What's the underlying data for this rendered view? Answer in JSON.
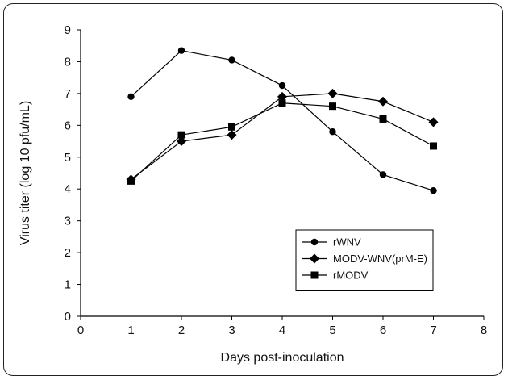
{
  "chart_data": {
    "type": "line",
    "xlabel": "Days post-inoculation",
    "ylabel": "Virus titer (log 10 pfu/mL)",
    "xlim": [
      0,
      8
    ],
    "ylim": [
      0,
      9
    ],
    "xticks": [
      0,
      1,
      2,
      3,
      4,
      5,
      6,
      7,
      8
    ],
    "yticks": [
      0,
      1,
      2,
      3,
      4,
      5,
      6,
      7,
      8,
      9
    ],
    "grid": false,
    "legend_position": "lower-right",
    "series": [
      {
        "name": "rWNV",
        "marker": "circle",
        "color": "#000000",
        "x": [
          1,
          2,
          3,
          4,
          5,
          6,
          7
        ],
        "y": [
          6.9,
          8.35,
          8.05,
          7.25,
          5.8,
          4.45,
          3.95
        ]
      },
      {
        "name": "MODV-WNV(prM-E)",
        "marker": "diamond",
        "color": "#000000",
        "x": [
          1,
          2,
          3,
          4,
          5,
          6,
          7
        ],
        "y": [
          4.3,
          5.5,
          5.7,
          6.9,
          7.0,
          6.75,
          6.1
        ]
      },
      {
        "name": "rMODV",
        "marker": "square",
        "color": "#000000",
        "x": [
          1,
          2,
          3,
          4,
          5,
          6,
          7
        ],
        "y": [
          4.25,
          5.7,
          5.95,
          6.7,
          6.6,
          6.2,
          5.35
        ]
      }
    ]
  }
}
